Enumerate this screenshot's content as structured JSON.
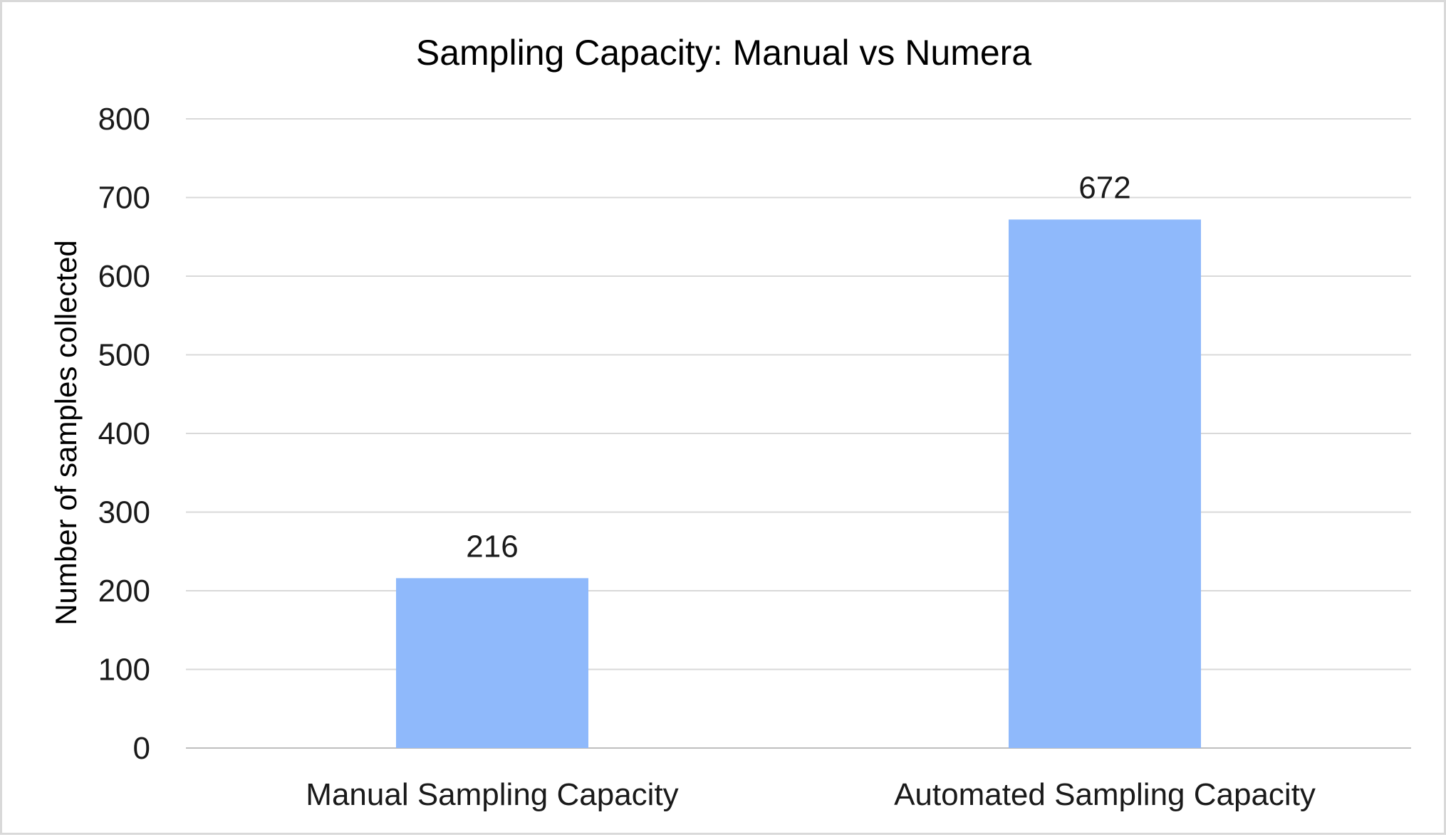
{
  "chart_data": {
    "type": "bar",
    "title": "Sampling Capacity: Manual vs Numera",
    "xlabel": "",
    "ylabel": "Number of samples collected",
    "categories": [
      "Manual Sampling Capacity",
      "Automated Sampling Capacity"
    ],
    "values": [
      216,
      672
    ],
    "data_labels": [
      "216",
      "672"
    ],
    "ylim": [
      0,
      800
    ],
    "yticks": [
      0,
      100,
      200,
      300,
      400,
      500,
      600,
      700,
      800
    ],
    "grid": true,
    "legend": "none",
    "colors": {
      "bar": "#8fb9fb",
      "grid": "#d9d9d9",
      "axis": "#bfbfbf"
    }
  }
}
